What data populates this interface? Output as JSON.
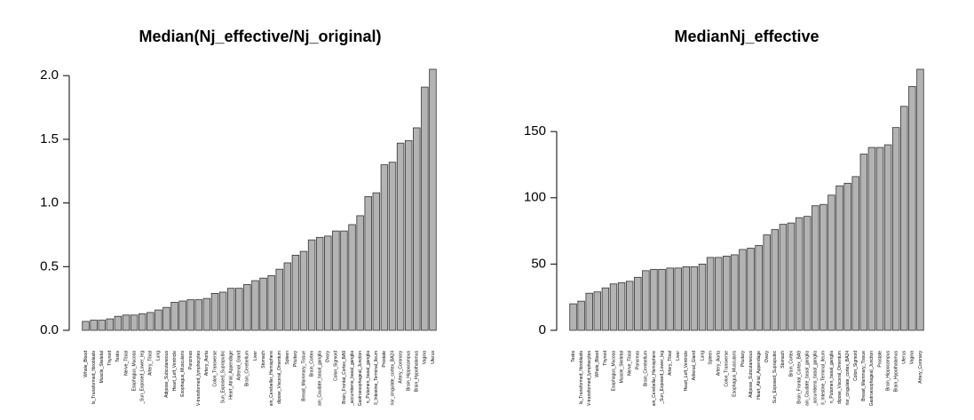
{
  "chart_data": [
    {
      "type": "bar",
      "title": "Median(Nj_effective/Nj_original)",
      "color": "#b3b3b3",
      "categories": [
        "Whole_Blood",
        "ls_Transformed_fibroblasts",
        "Muscle_Skeletal",
        "Thyroid",
        "Testis",
        "Nerve_Tibial",
        "Esophagus_Mucosa",
        "_Sun_Exposed_Lower_leg",
        "Artery_Tibial",
        "Lung",
        "Adipose_Subcutaneous",
        "Heart_Left_Ventricle",
        "Esophagus_Muscularis",
        "Pancreas",
        "V-transformed_lymphocytes",
        "Artery_Aorta",
        "Colon_Transverse",
        "Sun_Exposed_Suprapubic",
        "Heart_Atrial_Appendage",
        "Adrenal_Gland",
        "Brain_Cerebellum",
        "Liver",
        "Stomach",
        "ain_Cerebellar_Hemisphere",
        "dipose_Visceral_Omentum",
        "Spleen",
        "Pituitary",
        "Breast_Mammary_Tissue",
        "Brain_Cortex",
        "ain_Caudate_basal_ganglia",
        "Ovary",
        "Colon_Sigmoid",
        "Brain_Frontal_Cortex_BA9",
        "_accumbens_basal_ganglia",
        "Gastroesophageal_Junction",
        "n_Putamen_basal_ganglia",
        "ll_Intestine_Terminal_Ileum",
        "Prostate",
        "rior_cingulate_cortex_BA24",
        "Artery_Coronary",
        "Brain_Hippocampus",
        "Brain_Hypothalamus",
        "Vagina",
        "Uterus"
      ],
      "values": [
        0.07,
        0.08,
        0.08,
        0.09,
        0.11,
        0.12,
        0.12,
        0.13,
        0.14,
        0.16,
        0.18,
        0.22,
        0.23,
        0.24,
        0.24,
        0.25,
        0.29,
        0.3,
        0.33,
        0.33,
        0.36,
        0.39,
        0.41,
        0.43,
        0.48,
        0.53,
        0.59,
        0.62,
        0.71,
        0.73,
        0.74,
        0.78,
        0.78,
        0.83,
        0.9,
        1.05,
        1.08,
        1.3,
        1.32,
        1.47,
        1.49,
        1.59,
        1.91,
        2.05
      ],
      "ylim": [
        0,
        2.05
      ],
      "yticks": [
        {
          "value": 0,
          "label": "0.0"
        },
        {
          "value": 0.5,
          "label": "0.5"
        },
        {
          "value": 1,
          "label": "1.0"
        },
        {
          "value": 1.5,
          "label": "1.5"
        },
        {
          "value": 2,
          "label": "2.0"
        }
      ]
    },
    {
      "type": "bar",
      "title": "MedianNj_effective",
      "color": "#b3b3b3",
      "categories": [
        "Testis",
        "ls_Transformed_fibroblasts",
        "V-transformed_lymphocytes",
        "Whole_Blood",
        "Thyroid",
        "Esophagus_Mucosa",
        "Muscle_Skeletal",
        "Nerve_Tibial",
        "Pancreas",
        "Brain_Cerebellum",
        "ain_Cerebellar_Hemisphere",
        "_Sun_Exposed_Lower_leg",
        "Artery_Tibial",
        "Liver",
        "Heart_Left_Ventricle",
        "Adrenal_Gland",
        "Lung",
        "Spleen",
        "Artery_Aorta",
        "Colon_Transverse",
        "Esophagus_Muscularis",
        "Pituitary",
        "Adipose_Subcutaneous",
        "Heart_Atrial_Appendage",
        "Ovary",
        "Sun_Exposed_Suprapubic",
        "Stomach",
        "Brain_Cortex",
        "Brain_Frontal_Cortex_BA9",
        "ain_Caudate_basal_ganglia",
        "_accumbens_basal_ganglia",
        "ll_Intestine_Terminal_Ileum",
        "n_Putamen_basal_ganglia",
        "dipose_Visceral_Omentum",
        "rior_cingulate_cortex_BA24",
        "Colon_Sigmoid",
        "Breast_Mammary_Tissue",
        "Gastroesophageal_Junction",
        "Prostate",
        "Brain_Hippocampus",
        "Brain_Hypothalamus",
        "Uterus",
        "Vagina",
        "Artery_Coronary"
      ],
      "values": [
        20,
        22,
        28,
        29,
        32,
        35,
        36,
        37,
        40,
        45,
        46,
        46,
        47,
        47,
        48,
        48,
        50,
        55,
        55,
        56,
        57,
        61,
        62,
        64,
        72,
        76,
        80,
        81,
        85,
        86,
        94,
        95,
        102,
        109,
        111,
        116,
        133,
        138,
        138,
        140,
        153,
        169,
        184,
        197
      ],
      "ylim": [
        0,
        197
      ],
      "yticks": [
        0,
        50,
        100,
        150
      ]
    }
  ]
}
